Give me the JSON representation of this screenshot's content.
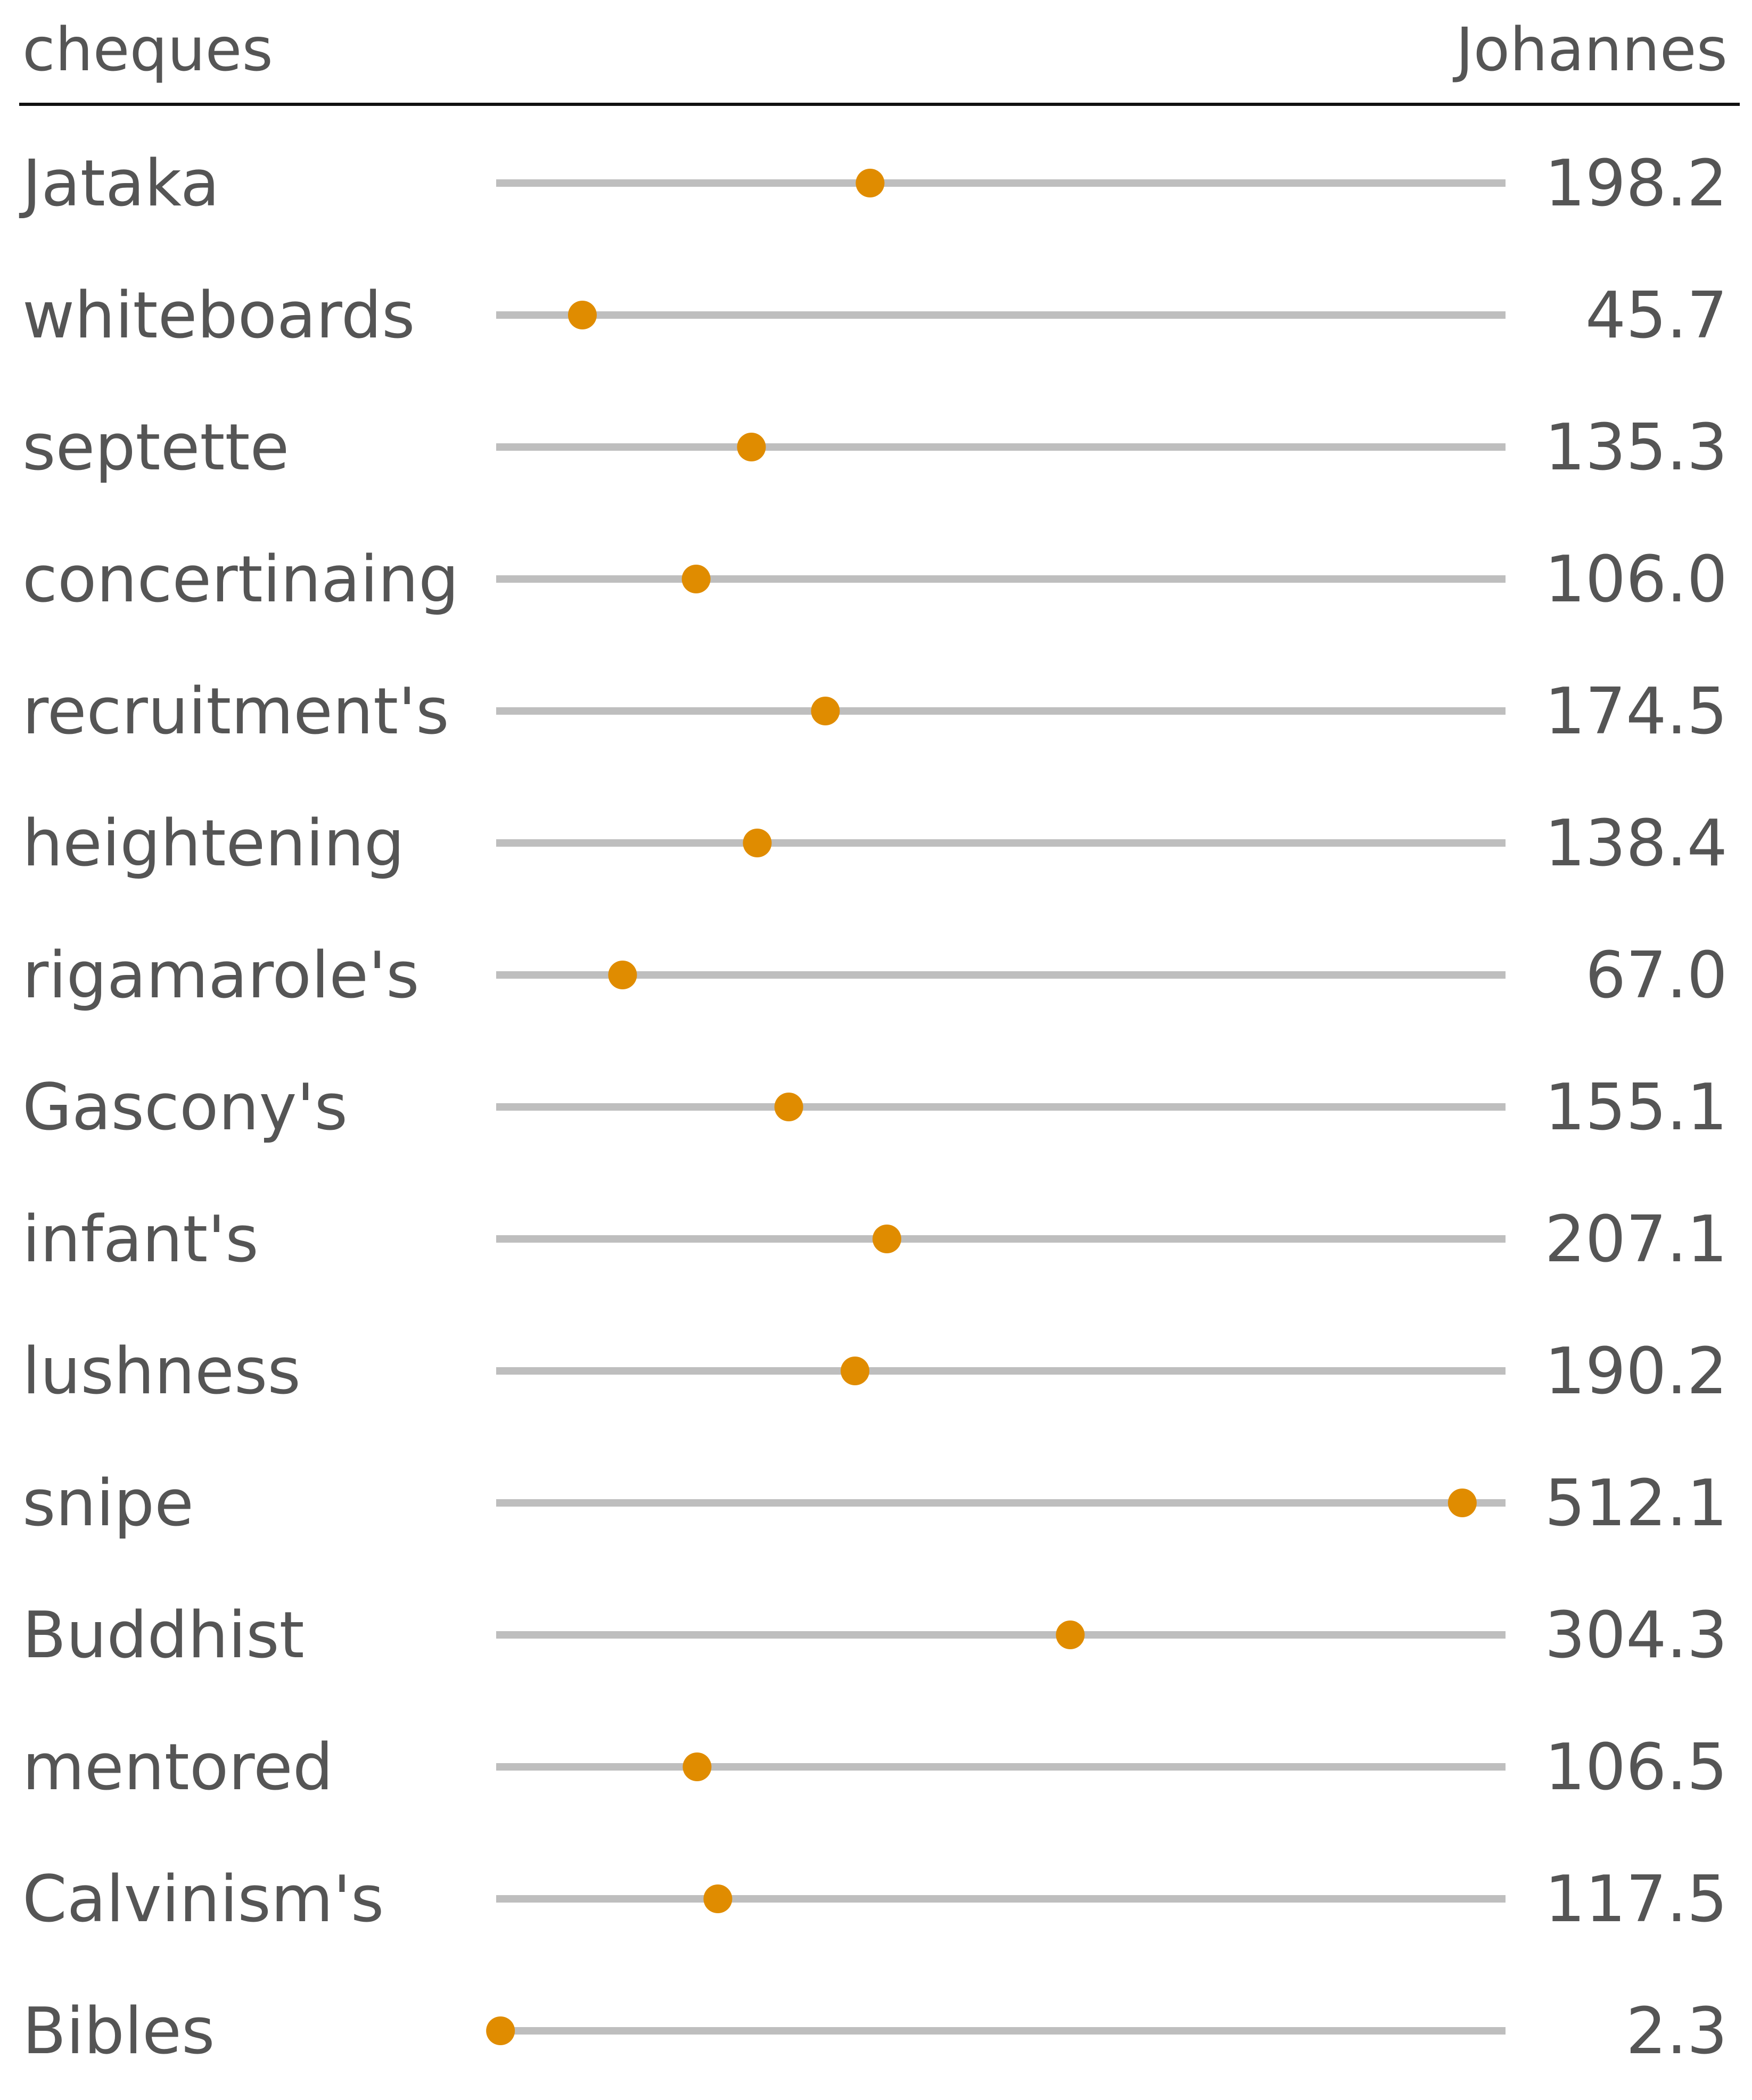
{
  "chart_data": {
    "type": "dot",
    "header_left": "cheques",
    "header_right": "Johannes",
    "categories": [
      "Jataka",
      "whiteboards",
      "septette",
      "concertinaing",
      "recruitment's",
      "heightening",
      "rigamarole's",
      "Gascony's",
      "infant's",
      "lushness",
      "snipe",
      "Buddhist",
      "mentored",
      "Calvinism's",
      "Bibles"
    ],
    "values": [
      198.2,
      45.7,
      135.3,
      106.0,
      174.5,
      138.4,
      67.0,
      155.1,
      207.1,
      190.2,
      512.1,
      304.3,
      106.5,
      117.5,
      2.3
    ],
    "value_labels": [
      "198.2",
      "45.7",
      "135.3",
      "106.0",
      "174.5",
      "138.4",
      "67.0",
      "155.1",
      "207.1",
      "190.2",
      "512.1",
      "304.3",
      "106.5",
      "117.5",
      "2.3"
    ],
    "xlim": [
      0,
      535
    ],
    "colors": {
      "dot": "#E08C00",
      "track": "#BEBEBE",
      "rule": "#111111",
      "text": "#555555"
    }
  }
}
